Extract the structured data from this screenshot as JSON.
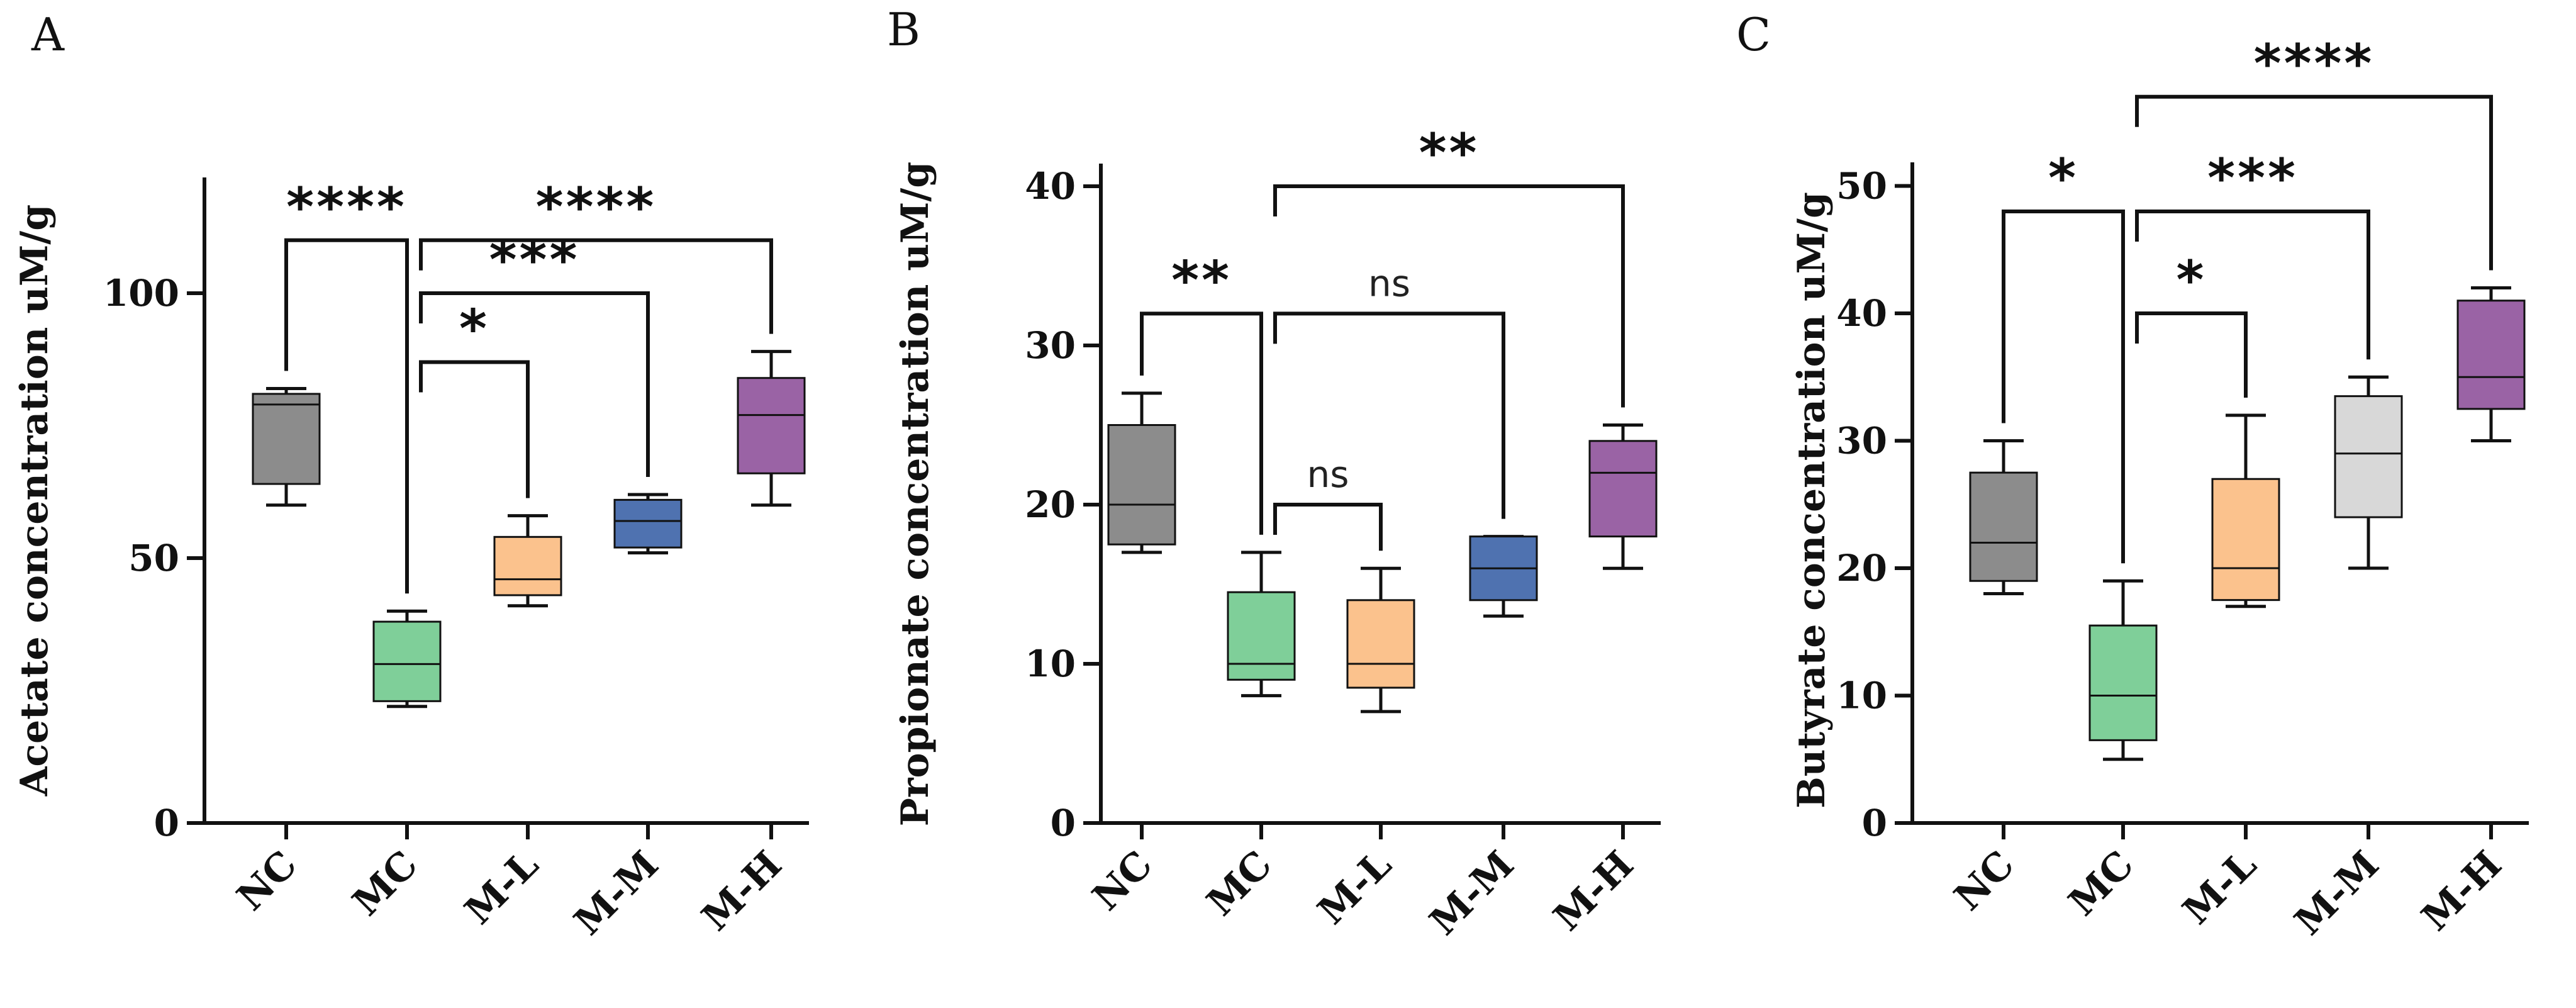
{
  "chart_data": [
    {
      "type": "boxplot",
      "panel_label": "A",
      "ylabel": "Acetate concentration uM/g",
      "ylim": [
        0,
        120
      ],
      "yticks": [
        0,
        50,
        100
      ],
      "categories": [
        "NC",
        "MC",
        "M-L",
        "M-M",
        "M-H"
      ],
      "colors": [
        "#8c8c8c",
        "#7fcf99",
        "#fbc28d",
        "#4f72b0",
        "#9a63a5"
      ],
      "boxes": [
        {
          "min": 60,
          "q1": 64,
          "median": 79,
          "q3": 81,
          "max": 82
        },
        {
          "min": 22,
          "q1": 23,
          "median": 30,
          "q3": 38,
          "max": 40
        },
        {
          "min": 41,
          "q1": 43,
          "median": 46,
          "q3": 54,
          "max": 58
        },
        {
          "min": 51,
          "q1": 52,
          "median": 57,
          "q3": 61,
          "max": 62
        },
        {
          "min": 60,
          "q1": 66,
          "median": 77,
          "q3": 84,
          "max": 89
        }
      ],
      "comparisons": [
        {
          "from": 0,
          "to": 1,
          "label": "****",
          "level": 110
        },
        {
          "from": 1,
          "to": 4,
          "label": "****",
          "level": 110
        },
        {
          "from": 1,
          "to": 3,
          "label": "***",
          "level": 100
        },
        {
          "from": 1,
          "to": 2,
          "label": "*",
          "level": 87
        }
      ]
    },
    {
      "type": "boxplot",
      "panel_label": "B",
      "ylabel": "Propionate concentration uM/g",
      "ylim": [
        0,
        40
      ],
      "yticks": [
        0,
        10,
        20,
        30,
        40
      ],
      "categories": [
        "NC",
        "MC",
        "M-L",
        "M-M",
        "M-H"
      ],
      "colors": [
        "#8c8c8c",
        "#7fcf99",
        "#fbc28d",
        "#4f72b0",
        "#9a63a5"
      ],
      "boxes": [
        {
          "min": 17,
          "q1": 17.5,
          "median": 20,
          "q3": 25,
          "max": 27
        },
        {
          "min": 8,
          "q1": 9,
          "median": 10,
          "q3": 14.5,
          "max": 17
        },
        {
          "min": 7,
          "q1": 8.5,
          "median": 10,
          "q3": 14,
          "max": 16
        },
        {
          "min": 13,
          "q1": 14,
          "median": 16,
          "q3": 18,
          "max": 18
        },
        {
          "min": 16,
          "q1": 18,
          "median": 22,
          "q3": 24,
          "max": 25
        }
      ],
      "comparisons": [
        {
          "from": 1,
          "to": 4,
          "label": "**",
          "level": 40
        },
        {
          "from": 0,
          "to": 1,
          "label": "**",
          "level": 32
        },
        {
          "from": 1,
          "to": 3,
          "label": "ns",
          "level": 32
        },
        {
          "from": 1,
          "to": 2,
          "label": "ns",
          "level": 20
        }
      ]
    },
    {
      "type": "boxplot",
      "panel_label": "C",
      "ylabel": "Butyrate concentration uM/g",
      "ylim": [
        0,
        50
      ],
      "yticks": [
        0,
        10,
        20,
        30,
        40,
        50
      ],
      "categories": [
        "NC",
        "MC",
        "M-L",
        "M-M",
        "M-H"
      ],
      "colors": [
        "#8c8c8c",
        "#7fcf99",
        "#fbc28d",
        "#d8d8d8",
        "#9a63a5"
      ],
      "boxes": [
        {
          "min": 18,
          "q1": 19,
          "median": 22,
          "q3": 27.5,
          "max": 30
        },
        {
          "min": 5,
          "q1": 6.5,
          "median": 10,
          "q3": 15.5,
          "max": 19
        },
        {
          "min": 17,
          "q1": 17.5,
          "median": 20,
          "q3": 27,
          "max": 32
        },
        {
          "min": 20,
          "q1": 24,
          "median": 29,
          "q3": 33.5,
          "max": 35
        },
        {
          "min": 30,
          "q1": 32.5,
          "median": 35,
          "q3": 41,
          "max": 42
        }
      ],
      "comparisons": [
        {
          "from": 1,
          "to": 4,
          "label": "****",
          "level": 57
        },
        {
          "from": 0,
          "to": 1,
          "label": "*",
          "level": 48
        },
        {
          "from": 1,
          "to": 3,
          "label": "***",
          "level": 48
        },
        {
          "from": 1,
          "to": 2,
          "label": "*",
          "level": 40
        }
      ]
    }
  ]
}
